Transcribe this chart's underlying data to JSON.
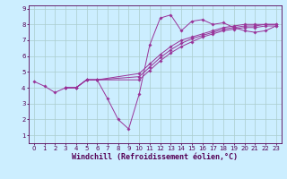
{
  "xlabel": "Windchill (Refroidissement éolien,°C)",
  "background_color": "#cceeff",
  "grid_color": "#aacccc",
  "line_color": "#993399",
  "xlim": [
    -0.5,
    23.5
  ],
  "ylim": [
    0.5,
    9.2
  ],
  "xticks": [
    0,
    1,
    2,
    3,
    4,
    5,
    6,
    7,
    8,
    9,
    10,
    11,
    12,
    13,
    14,
    15,
    16,
    17,
    18,
    19,
    20,
    21,
    22,
    23
  ],
  "yticks": [
    1,
    2,
    3,
    4,
    5,
    6,
    7,
    8,
    9
  ],
  "series": [
    {
      "x": [
        0,
        1,
        2,
        3,
        4,
        5,
        6,
        7,
        8,
        9,
        10,
        11,
        12,
        13,
        14,
        15,
        16,
        17,
        18,
        19,
        20,
        21,
        22,
        23
      ],
      "y": [
        4.4,
        4.1,
        3.7,
        4.0,
        4.0,
        4.5,
        4.5,
        3.3,
        2.0,
        1.4,
        3.6,
        6.7,
        8.4,
        8.6,
        7.6,
        8.2,
        8.3,
        8.0,
        8.1,
        7.8,
        7.6,
        7.5,
        7.6,
        7.9
      ]
    },
    {
      "x": [
        3,
        4,
        5,
        6,
        10,
        11,
        12,
        13,
        14,
        15,
        16,
        17,
        18,
        19,
        20,
        21,
        22,
        23
      ],
      "y": [
        4.0,
        4.0,
        4.5,
        4.5,
        4.5,
        5.1,
        5.7,
        6.2,
        6.6,
        6.9,
        7.2,
        7.4,
        7.6,
        7.7,
        7.8,
        7.8,
        7.9,
        7.9
      ]
    },
    {
      "x": [
        3,
        4,
        5,
        6,
        10,
        11,
        12,
        13,
        14,
        15,
        16,
        17,
        18,
        19,
        20,
        21,
        22,
        23
      ],
      "y": [
        4.0,
        4.0,
        4.5,
        4.5,
        4.7,
        5.3,
        5.9,
        6.4,
        6.8,
        7.1,
        7.3,
        7.5,
        7.7,
        7.8,
        7.9,
        7.9,
        8.0,
        8.0
      ]
    },
    {
      "x": [
        3,
        4,
        5,
        6,
        10,
        11,
        12,
        13,
        14,
        15,
        16,
        17,
        18,
        19,
        20,
        21,
        22,
        23
      ],
      "y": [
        4.0,
        4.0,
        4.5,
        4.5,
        4.9,
        5.5,
        6.1,
        6.6,
        7.0,
        7.2,
        7.4,
        7.6,
        7.8,
        7.9,
        8.0,
        8.0,
        8.0,
        8.0
      ]
    }
  ],
  "tick_fontsize": 5.0,
  "label_fontsize": 6.0,
  "marker": "D",
  "markersize": 1.8,
  "linewidth": 0.7
}
